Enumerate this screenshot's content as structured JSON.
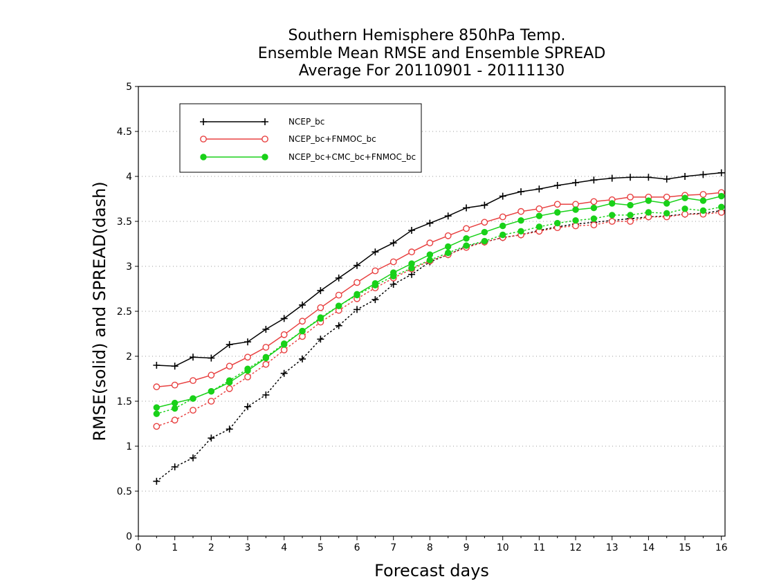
{
  "colors": {
    "series_black": "#000000",
    "series_red": "#e84040",
    "series_green": "#19d119",
    "grid": "#9a9a9a"
  },
  "chart_data": {
    "type": "line",
    "title_lines": [
      "Southern Hemisphere 850hPa Temp.",
      "Ensemble Mean RMSE and Ensemble SPREAD",
      "Average For 20110901 - 20111130"
    ],
    "xlabel": "Forecast days",
    "ylabel": "RMSE(solid) and SPREAD(dash)",
    "xlim": [
      0,
      16.1
    ],
    "ylim": [
      0,
      5
    ],
    "xticks": [
      "0",
      "1",
      "2",
      "3",
      "4",
      "5",
      "6",
      "7",
      "8",
      "9",
      "10",
      "11",
      "12",
      "13",
      "14",
      "15",
      "16"
    ],
    "yticks": [
      "0",
      "0.5",
      "1",
      "1.5",
      "2",
      "2.5",
      "3",
      "3.5",
      "4",
      "4.5",
      "5"
    ],
    "grid": "horizontal dotted",
    "legend_position": "top-left",
    "x": [
      0.5,
      1,
      1.5,
      2,
      2.5,
      3,
      3.5,
      4,
      4.5,
      5,
      5.5,
      6,
      6.5,
      7,
      7.5,
      8,
      8.5,
      9,
      9.5,
      10,
      10.5,
      11,
      11.5,
      12,
      12.5,
      13,
      13.5,
      14,
      14.5,
      15,
      15.5,
      16
    ],
    "series": [
      {
        "name": "NCEP_bc",
        "color": "#000000",
        "marker": "plus",
        "rmse": [
          1.9,
          1.89,
          1.99,
          1.98,
          2.13,
          2.16,
          2.3,
          2.42,
          2.57,
          2.73,
          2.87,
          3.01,
          3.16,
          3.26,
          3.4,
          3.48,
          3.56,
          3.65,
          3.68,
          3.78,
          3.83,
          3.86,
          3.9,
          3.93,
          3.96,
          3.98,
          3.99,
          3.99,
          3.97,
          4.0,
          4.02,
          4.04
        ],
        "spread": [
          0.61,
          0.77,
          0.87,
          1.09,
          1.19,
          1.44,
          1.57,
          1.81,
          1.97,
          2.19,
          2.34,
          2.52,
          2.63,
          2.8,
          2.91,
          3.05,
          3.13,
          3.22,
          3.27,
          3.32,
          3.35,
          3.4,
          3.44,
          3.47,
          3.49,
          3.51,
          3.53,
          3.55,
          3.56,
          3.58,
          3.59,
          3.62
        ]
      },
      {
        "name": "NCEP_bc+FNMOC_bc",
        "color": "#e84040",
        "marker": "open-circle",
        "rmse": [
          1.66,
          1.68,
          1.73,
          1.79,
          1.89,
          1.99,
          2.1,
          2.24,
          2.39,
          2.54,
          2.68,
          2.82,
          2.95,
          3.05,
          3.16,
          3.26,
          3.34,
          3.42,
          3.49,
          3.55,
          3.61,
          3.64,
          3.69,
          3.69,
          3.72,
          3.74,
          3.77,
          3.77,
          3.77,
          3.79,
          3.8,
          3.82
        ],
        "spread": [
          1.22,
          1.29,
          1.4,
          1.5,
          1.64,
          1.77,
          1.91,
          2.07,
          2.22,
          2.38,
          2.51,
          2.64,
          2.76,
          2.87,
          2.97,
          3.06,
          3.13,
          3.21,
          3.27,
          3.32,
          3.35,
          3.39,
          3.43,
          3.45,
          3.46,
          3.5,
          3.5,
          3.55,
          3.55,
          3.58,
          3.58,
          3.6
        ]
      },
      {
        "name": "NCEP_bc+CMC_bc+FNMOC_bc",
        "color": "#19d119",
        "marker": "filled-circle",
        "rmse": [
          1.43,
          1.48,
          1.53,
          1.61,
          1.71,
          1.84,
          1.98,
          2.13,
          2.28,
          2.42,
          2.56,
          2.69,
          2.81,
          2.93,
          3.03,
          3.13,
          3.22,
          3.31,
          3.38,
          3.45,
          3.51,
          3.56,
          3.6,
          3.63,
          3.65,
          3.7,
          3.68,
          3.73,
          3.7,
          3.76,
          3.73,
          3.78
        ],
        "spread": [
          1.36,
          1.42,
          1.53,
          1.61,
          1.73,
          1.86,
          1.99,
          2.14,
          2.28,
          2.43,
          2.56,
          2.68,
          2.79,
          2.89,
          2.98,
          3.07,
          3.15,
          3.23,
          3.28,
          3.35,
          3.39,
          3.44,
          3.48,
          3.51,
          3.53,
          3.57,
          3.57,
          3.6,
          3.59,
          3.64,
          3.62,
          3.66
        ]
      }
    ]
  }
}
